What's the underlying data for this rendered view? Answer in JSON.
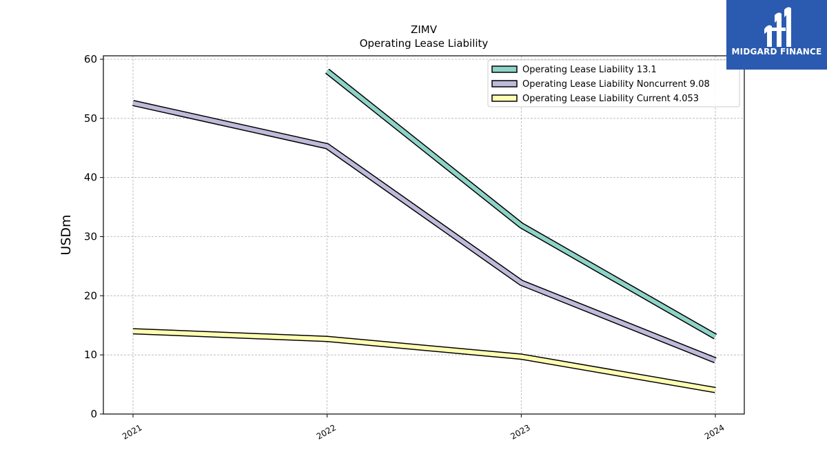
{
  "logo": {
    "text": "MIDGARD FINANCE",
    "bg_color": "#2b5bb0"
  },
  "chart_data": {
    "type": "line",
    "title": "ZIMV",
    "subtitle": "Operating Lease Liability",
    "xlabel": "",
    "ylabel": "USDm",
    "categories": [
      "2021",
      "2022",
      "2023",
      "2024"
    ],
    "ylim": [
      0,
      60
    ],
    "yticks": [
      0,
      10,
      20,
      30,
      40,
      50,
      60
    ],
    "grid": true,
    "legend_position": "top-right",
    "series": [
      {
        "name": "Operating Lease Liability  13.1",
        "color": "#8dd3c7",
        "values": [
          null,
          58.0,
          31.9,
          13.1
        ]
      },
      {
        "name": "Operating Lease Liability Noncurrent  9.08",
        "color": "#bebada",
        "values": [
          52.6,
          45.3,
          22.2,
          9.08
        ]
      },
      {
        "name": "Operating Lease Liability Current  4.053",
        "color": "#ffffb3",
        "values": [
          14.0,
          12.7,
          9.7,
          4.053
        ]
      }
    ]
  }
}
